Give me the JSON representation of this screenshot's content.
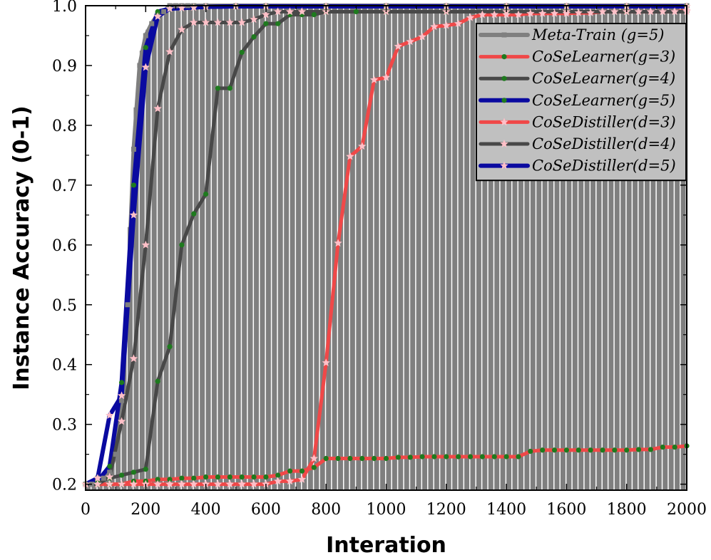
{
  "chart_data": {
    "type": "line",
    "title": "",
    "xlabel": "Interation",
    "ylabel": "Instance Accuracy (0-1)",
    "xlim": [
      0,
      2000
    ],
    "ylim": [
      0.19,
      1.0
    ],
    "xticks": [
      0,
      200,
      400,
      600,
      800,
      1000,
      1200,
      1400,
      1600,
      1800,
      2000
    ],
    "xtick_labels": [
      "0",
      "200",
      "400",
      "600",
      "800",
      "1000",
      "1200",
      "1400",
      "1600",
      "1800",
      "2000"
    ],
    "yticks": [
      0.2,
      0.3,
      0.4,
      0.5,
      0.6,
      0.7,
      0.8,
      0.9,
      1.0
    ],
    "ytick_labels": [
      "0.2",
      "0.3",
      "0.4",
      "0.5",
      "0.6",
      "0.7",
      "0.8",
      "0.9",
      "1.0"
    ],
    "grid": false,
    "legend_position": "top-right",
    "background_bars": {
      "description": "dense vertical bars with white separators",
      "color": "#7f7f7f",
      "spacing": 20
    },
    "series": [
      {
        "name": "Meta-Train (g=5)",
        "color": "#7f7f7f",
        "marker": "square",
        "marker_color": "#7f7f7f",
        "width": 6,
        "x": [
          0,
          20,
          40,
          60,
          80,
          100,
          120,
          140,
          160,
          180,
          200,
          220,
          240,
          260,
          280,
          300,
          320,
          340,
          360,
          400,
          500,
          600,
          800,
          1000,
          1200,
          1400,
          1600,
          1800,
          2000
        ],
        "y": [
          0.2,
          0.2,
          0.21,
          0.21,
          0.22,
          0.25,
          0.34,
          0.5,
          0.76,
          0.9,
          0.95,
          0.97,
          0.985,
          0.99,
          1.0,
          1.0,
          1.0,
          1.0,
          1.0,
          1.0,
          1.0,
          1.0,
          1.0,
          1.0,
          1.0,
          1.0,
          1.0,
          1.0,
          1.0
        ]
      },
      {
        "name": "CoSeLearner(g=3)",
        "color": "#f04848",
        "marker": "dot",
        "marker_color": "#1e7a1e",
        "width": 5,
        "x": [
          0,
          40,
          80,
          120,
          160,
          200,
          240,
          280,
          320,
          360,
          400,
          440,
          480,
          520,
          560,
          600,
          640,
          680,
          720,
          760,
          800,
          840,
          880,
          920,
          960,
          1000,
          1040,
          1080,
          1120,
          1160,
          1200,
          1240,
          1280,
          1320,
          1360,
          1400,
          1440,
          1480,
          1520,
          1560,
          1600,
          1640,
          1680,
          1720,
          1760,
          1800,
          1840,
          1880,
          1920,
          1960,
          2000
        ],
        "y": [
          0.2,
          0.2,
          0.2,
          0.2,
          0.205,
          0.205,
          0.208,
          0.208,
          0.21,
          0.21,
          0.212,
          0.212,
          0.212,
          0.212,
          0.212,
          0.212,
          0.215,
          0.222,
          0.222,
          0.228,
          0.243,
          0.243,
          0.243,
          0.243,
          0.243,
          0.243,
          0.245,
          0.245,
          0.246,
          0.246,
          0.246,
          0.246,
          0.246,
          0.246,
          0.246,
          0.246,
          0.246,
          0.255,
          0.257,
          0.257,
          0.257,
          0.257,
          0.257,
          0.257,
          0.257,
          0.257,
          0.258,
          0.258,
          0.262,
          0.262,
          0.264
        ]
      },
      {
        "name": "CoSeLearner(g=4)",
        "color": "#484848",
        "marker": "dot",
        "marker_color": "#1e7a1e",
        "width": 5,
        "x": [
          0,
          40,
          80,
          120,
          160,
          200,
          240,
          280,
          320,
          360,
          400,
          440,
          480,
          520,
          560,
          600,
          640,
          680,
          720,
          760,
          800,
          900,
          1000,
          1200,
          1400,
          1600,
          1800,
          2000
        ],
        "y": [
          0.2,
          0.205,
          0.21,
          0.215,
          0.22,
          0.225,
          0.372,
          0.43,
          0.6,
          0.652,
          0.685,
          0.862,
          0.862,
          0.922,
          0.948,
          0.97,
          0.97,
          0.985,
          0.985,
          0.985,
          0.99,
          0.99,
          0.99,
          0.99,
          0.99,
          0.99,
          0.99,
          0.99
        ]
      },
      {
        "name": "CoSeLearner(g=5)",
        "color": "#0a0aa0",
        "marker": "dot",
        "marker_color": "#1e7a1e",
        "width": 6,
        "x": [
          0,
          40,
          80,
          120,
          160,
          200,
          240,
          280,
          320,
          360,
          400,
          500,
          600,
          800,
          1000,
          1200,
          1400,
          1600,
          1800,
          2000
        ],
        "y": [
          0.2,
          0.205,
          0.23,
          0.37,
          0.7,
          0.93,
          0.99,
          0.995,
          0.997,
          0.998,
          0.998,
          0.999,
          0.999,
          0.999,
          0.999,
          0.999,
          0.999,
          0.999,
          0.999,
          0.999
        ]
      },
      {
        "name": "CoSeDistiller(d=3)",
        "color": "#f04848",
        "marker": "star",
        "marker_color": "#ffc0c8",
        "width": 5,
        "x": [
          0,
          40,
          80,
          120,
          160,
          200,
          240,
          280,
          320,
          360,
          400,
          440,
          480,
          520,
          560,
          600,
          640,
          680,
          720,
          760,
          800,
          840,
          880,
          920,
          960,
          1000,
          1040,
          1080,
          1120,
          1160,
          1200,
          1240,
          1280,
          1320,
          1360,
          1400,
          1440,
          1480,
          1520,
          1560,
          1600,
          1640,
          1680,
          1720,
          1760,
          1800,
          1840,
          1880,
          1920,
          1960,
          2000
        ],
        "y": [
          0.2,
          0.2,
          0.2,
          0.2,
          0.2,
          0.2,
          0.2,
          0.2,
          0.2,
          0.2,
          0.2,
          0.2,
          0.2,
          0.2,
          0.2,
          0.2,
          0.205,
          0.205,
          0.208,
          0.243,
          0.403,
          0.603,
          0.748,
          0.765,
          0.876,
          0.88,
          0.932,
          0.94,
          0.948,
          0.965,
          0.967,
          0.97,
          0.98,
          0.985,
          0.985,
          0.985,
          0.985,
          0.987,
          0.987,
          0.987,
          0.987,
          0.988,
          0.988,
          0.99,
          0.99,
          0.99,
          0.99,
          0.99,
          0.99,
          0.99,
          0.992
        ]
      },
      {
        "name": "CoSeDistiller(d=4)",
        "color": "#484848",
        "marker": "star",
        "marker_color": "#ffc0c8",
        "width": 5,
        "x": [
          0,
          40,
          80,
          120,
          160,
          200,
          240,
          280,
          320,
          360,
          400,
          440,
          480,
          520,
          560,
          600,
          640,
          680,
          720,
          800,
          1000,
          1200,
          1400,
          1600,
          1800,
          2000
        ],
        "y": [
          0.2,
          0.2,
          0.212,
          0.305,
          0.41,
          0.6,
          0.828,
          0.923,
          0.96,
          0.972,
          0.972,
          0.972,
          0.972,
          0.972,
          0.977,
          0.985,
          0.99,
          0.99,
          0.99,
          0.99,
          0.99,
          0.99,
          0.99,
          0.99,
          0.99,
          0.99
        ]
      },
      {
        "name": "CoSeDistiller(d=5)",
        "color": "#0a0aa0",
        "marker": "star",
        "marker_color": "#ffc0c8",
        "width": 6,
        "x": [
          0,
          40,
          80,
          120,
          160,
          200,
          240,
          280,
          320,
          360,
          400,
          500,
          600,
          800,
          1000,
          1200,
          1400,
          1600,
          1800,
          2000
        ],
        "y": [
          0.2,
          0.21,
          0.315,
          0.348,
          0.65,
          0.897,
          0.982,
          0.995,
          0.996,
          0.997,
          0.998,
          0.999,
          0.999,
          0.999,
          0.999,
          0.999,
          0.999,
          0.999,
          0.999,
          0.999
        ]
      }
    ]
  }
}
